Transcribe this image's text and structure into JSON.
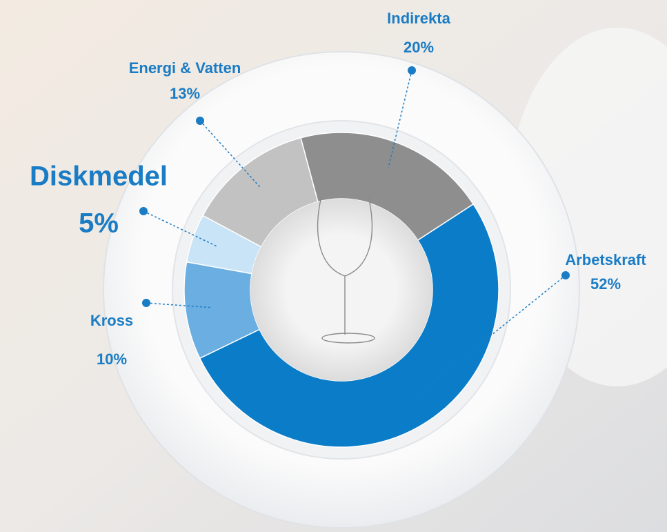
{
  "chart_data": {
    "type": "donut",
    "categories": [
      "Indirekta",
      "Arbetskraft",
      "Kross",
      "Diskmedel",
      "Energi & Vatten"
    ],
    "values": [
      20,
      52,
      10,
      5,
      13
    ],
    "value_labels": [
      "20%",
      "52%",
      "10%",
      "5%",
      "13%"
    ],
    "colors": [
      "#8e8e8e",
      "#0a7cc8",
      "#6aaee2",
      "#c9e3f7",
      "#c2c2c2"
    ],
    "label_color": "#1a7cc4"
  }
}
